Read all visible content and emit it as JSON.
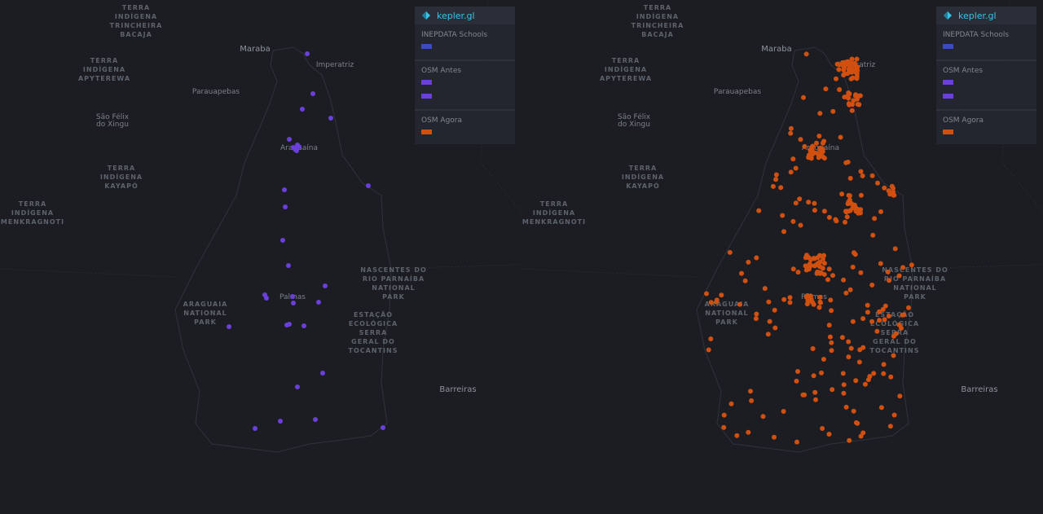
{
  "map_labels": [
    {
      "lines": [
        "TERRA",
        "INDÍGENA",
        "TRINCHEIRA",
        "BACAJA"
      ],
      "kind": "area"
    },
    {
      "lines": [
        "TERRA",
        "INDÍGENA",
        "APYTEREWA"
      ],
      "kind": "area"
    },
    {
      "lines": [
        "Maraba"
      ],
      "kind": "city-big"
    },
    {
      "lines": [
        "Imperatriz"
      ],
      "kind": "city"
    },
    {
      "lines": [
        "Parauapebas"
      ],
      "kind": "city"
    },
    {
      "lines": [
        "São Félix",
        "do Xingu"
      ],
      "kind": "city"
    },
    {
      "lines": [
        "Araguaína"
      ],
      "kind": "city"
    },
    {
      "lines": [
        "TERRA",
        "INDÍGENA",
        "KAYAPÓ"
      ],
      "kind": "area"
    },
    {
      "lines": [
        "TERRA",
        "INDÍGENA",
        "MENKRAGNOTI"
      ],
      "kind": "area"
    },
    {
      "lines": [
        "NASCENTES DO",
        "RIO PARNAÍBA",
        "NATIONAL",
        "PARK"
      ],
      "kind": "area"
    },
    {
      "lines": [
        "Palmas"
      ],
      "kind": "city"
    },
    {
      "lines": [
        "ARAGUAIA",
        "NATIONAL",
        "PARK"
      ],
      "kind": "area"
    },
    {
      "lines": [
        "ESTAÇÃO",
        "ECOLÓGICA",
        "SERRA",
        "GERAL DO",
        "TOCANTINS"
      ],
      "kind": "area"
    },
    {
      "lines": [
        "Barreiras"
      ],
      "kind": "city-big"
    }
  ],
  "legend": {
    "brand": "kepler.gl",
    "layers": [
      {
        "name": "INEPDATA Schools",
        "colors": [
          "#3b4cc0"
        ]
      },
      {
        "name": "OSM Antes",
        "colors": [
          "#6a3fdc",
          "#6a3fdc"
        ]
      },
      {
        "name": "OSM Agora",
        "colors": [
          "#d2500f"
        ]
      }
    ]
  },
  "panels": [
    {
      "point_color": "#6a3fdc"
    },
    {
      "point_color": "#d2500f"
    }
  ]
}
